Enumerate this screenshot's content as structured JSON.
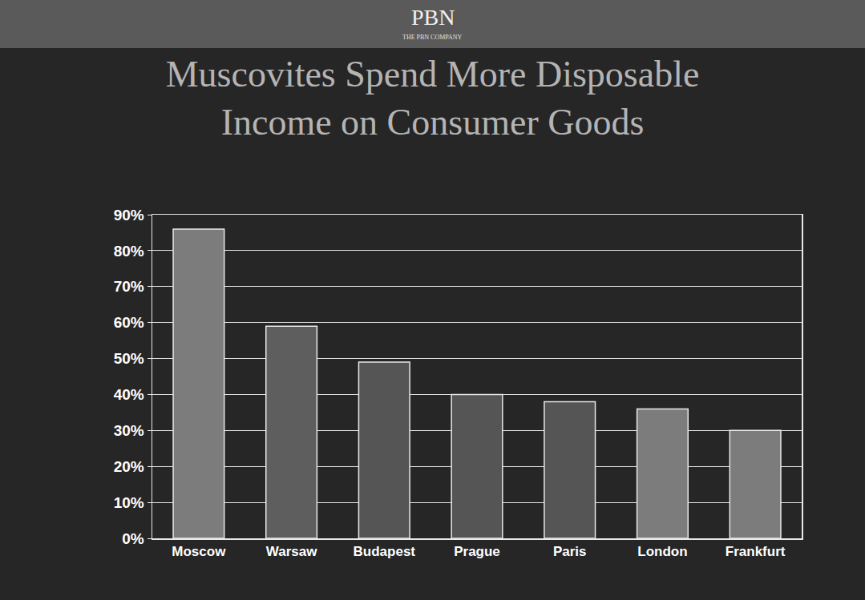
{
  "header": {
    "brand": "PBN",
    "company": "THE PBN COMPANY"
  },
  "chart_data": {
    "type": "bar",
    "title": "Muscovites Spend More Disposable Income on Consumer Goods",
    "categories": [
      "Moscow",
      "Warsaw",
      "Budapest",
      "Prague",
      "Paris",
      "London",
      "Frankfurt"
    ],
    "values": [
      86,
      59,
      49,
      40,
      38,
      36,
      30
    ],
    "colors": [
      "#7c7c7c",
      "#5e5e5e",
      "#555555",
      "#555555",
      "#555555",
      "#7c7c7c",
      "#7c7c7c"
    ],
    "ylim": [
      0,
      90
    ],
    "yticks": [
      {
        "value": 0,
        "label": "0%"
      },
      {
        "value": 10,
        "label": "10%"
      },
      {
        "value": 20,
        "label": "20%"
      },
      {
        "value": 30,
        "label": "30%"
      },
      {
        "value": 40,
        "label": "40%"
      },
      {
        "value": 50,
        "label": "50%"
      },
      {
        "value": 60,
        "label": "60%"
      },
      {
        "value": 70,
        "label": "70%"
      },
      {
        "value": 80,
        "label": "80%"
      },
      {
        "value": 90,
        "label": "90%"
      }
    ],
    "grid": true
  }
}
